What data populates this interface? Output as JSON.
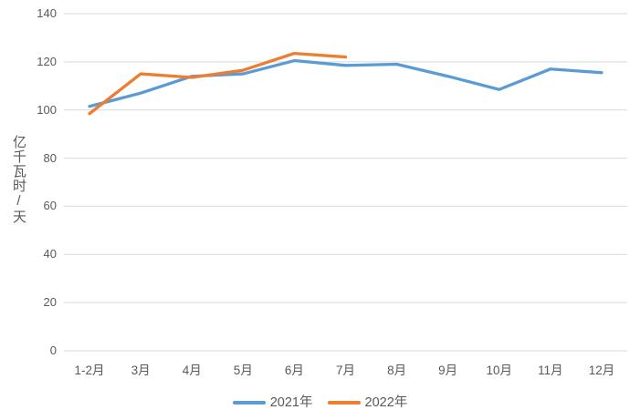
{
  "chart_data": {
    "type": "line",
    "categories": [
      "1-2月",
      "3月",
      "4月",
      "5月",
      "6月",
      "7月",
      "8月",
      "9月",
      "10月",
      "11月",
      "12月"
    ],
    "series": [
      {
        "name": "2021年",
        "color": "#5B9BD5",
        "values": [
          101.5,
          107,
          114,
          115,
          120.5,
          118.5,
          119,
          114,
          108.5,
          117,
          115.5
        ]
      },
      {
        "name": "2022年",
        "color": "#ED7D31",
        "values": [
          98.5,
          115,
          113.5,
          116.5,
          123.5,
          122
        ]
      }
    ],
    "title": "",
    "xlabel": "",
    "ylabel": "亿千瓦时/天",
    "ylim": [
      0,
      140
    ],
    "yticks": [
      0,
      20,
      40,
      60,
      80,
      100,
      120,
      140
    ],
    "grid": true,
    "legend_position": "bottom",
    "text_color": "#595959",
    "gridline_color": "#D9D9D9",
    "background_color": "#FFFFFF"
  }
}
